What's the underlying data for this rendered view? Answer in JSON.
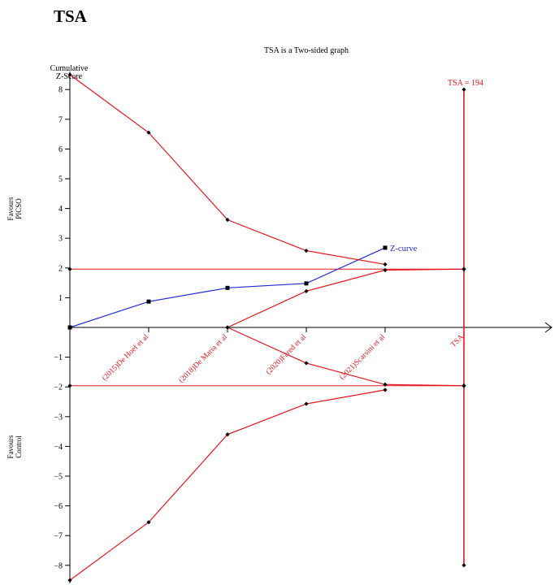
{
  "page_heading": "TSA",
  "colors": {
    "boundary": "#e8141b",
    "zcurve": "#1f2bd6",
    "axis": "#000000"
  },
  "chart_data": {
    "type": "line",
    "title": "TSA is a Two-sided graph",
    "ylabel_lines": [
      "Cumulative",
      "Z-Score"
    ],
    "ylim": [
      -8,
      8
    ],
    "yticks": [
      -8,
      -7,
      -6,
      -5,
      -4,
      -3,
      -2,
      -1,
      1,
      2,
      3,
      4,
      5,
      6,
      7,
      8
    ],
    "favours_top": [
      "Favours",
      "PICSO"
    ],
    "favours_bottom": [
      "Favours",
      "Control"
    ],
    "categories": [
      "(2015)De Hoef et al",
      "(2018)De Maria et al",
      "(2020)Fared et al",
      "(2021)Scarsini et al",
      "TSA"
    ],
    "series": [
      {
        "name": "Z-curve",
        "color": "#1f2bd6",
        "marker": "square",
        "x": [
          0,
          1,
          2,
          3,
          4
        ],
        "y": [
          0,
          0.87,
          1.33,
          1.48,
          2.68
        ]
      },
      {
        "color": "#e8141b",
        "marker": "diamond",
        "x": [
          0,
          1,
          2,
          3,
          4,
          5
        ],
        "y": [
          8.5,
          6.55,
          3.62,
          2.58,
          2.12,
          null
        ]
      },
      {
        "color": "#e8141b",
        "marker": "diamond",
        "x": [
          0,
          1,
          2,
          3,
          4,
          5
        ],
        "y": [
          -8.5,
          -6.55,
          -3.6,
          -2.57,
          -2.1,
          null
        ]
      },
      {
        "color": "#e8141b",
        "marker": "diamond",
        "x": [
          2,
          3,
          4,
          5
        ],
        "y": [
          0,
          1.22,
          1.93,
          1.96
        ]
      },
      {
        "color": "#e8141b",
        "marker": "diamond",
        "x": [
          2,
          3,
          4,
          5
        ],
        "y": [
          0,
          -1.2,
          -1.92,
          -1.96
        ]
      }
    ],
    "conventional_boundaries": [
      1.96,
      -1.96
    ],
    "tsa_line": {
      "x": 5,
      "label": "TSA = 194",
      "ymax": 8,
      "ymin": -8
    },
    "zcurve_label": "Z-curve"
  }
}
